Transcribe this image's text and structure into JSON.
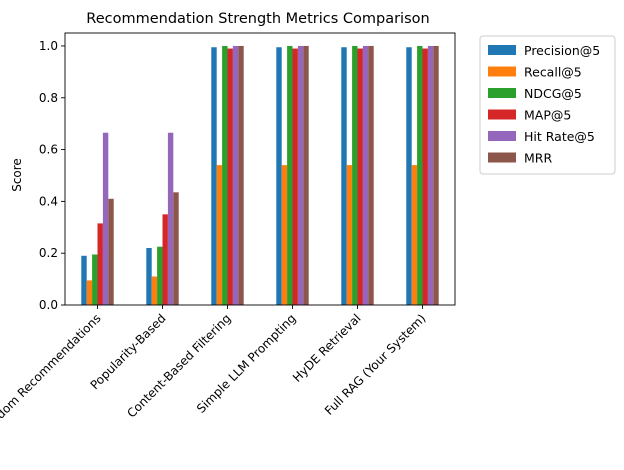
{
  "chart_data": {
    "type": "bar",
    "title": "Recommendation Strength Metrics Comparison",
    "xlabel": "",
    "ylabel": "Score",
    "ylim": [
      0,
      1.05
    ],
    "yticks": [
      "0.0",
      "0.2",
      "0.4",
      "0.6",
      "0.8",
      "1.0"
    ],
    "categories": [
      "Random Recommendations",
      "Popularity-Based",
      "Content-Based Filtering",
      "Simple LLM Prompting",
      "HyDE Retrieval",
      "Full RAG (Your System)"
    ],
    "series": [
      {
        "name": "Precision@5",
        "color": "#1f77b4",
        "values": [
          0.19,
          0.22,
          0.995,
          0.995,
          0.995,
          0.995
        ]
      },
      {
        "name": "Recall@5",
        "color": "#ff7f0e",
        "values": [
          0.095,
          0.11,
          0.54,
          0.54,
          0.54,
          0.54
        ]
      },
      {
        "name": "NDCG@5",
        "color": "#2ca02c",
        "values": [
          0.195,
          0.225,
          1.0,
          1.0,
          1.0,
          1.0
        ]
      },
      {
        "name": "MAP@5",
        "color": "#d62728",
        "values": [
          0.315,
          0.35,
          0.99,
          0.99,
          0.99,
          0.99
        ]
      },
      {
        "name": "Hit Rate@5",
        "color": "#9467bd",
        "values": [
          0.665,
          0.665,
          1.0,
          1.0,
          1.0,
          1.0
        ]
      },
      {
        "name": "MRR",
        "color": "#8c564b",
        "values": [
          0.41,
          0.435,
          1.0,
          1.0,
          1.0,
          1.0
        ]
      }
    ],
    "grid": false,
    "legend_position": "outside-top-right"
  }
}
